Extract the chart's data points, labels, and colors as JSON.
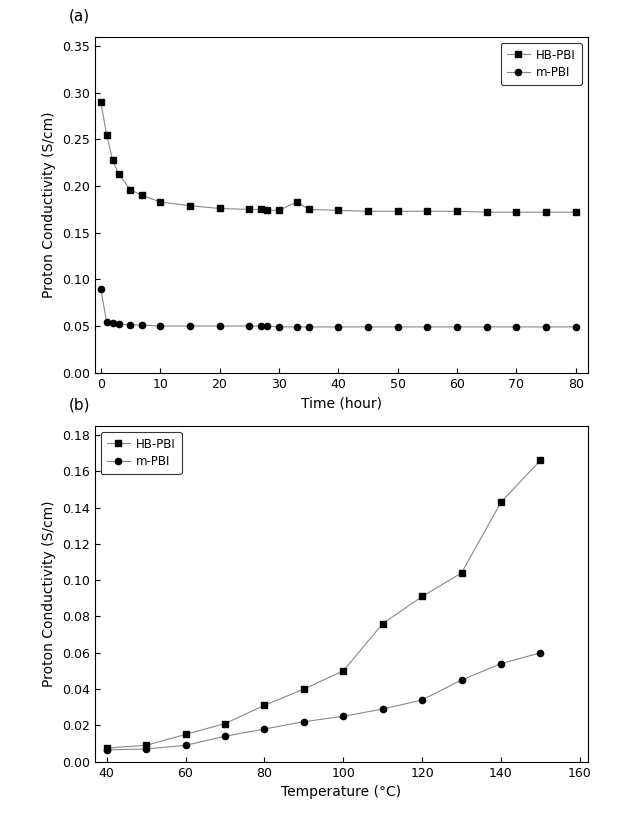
{
  "plot_a": {
    "hb_pbi_x": [
      0,
      1,
      2,
      3,
      5,
      7,
      10,
      15,
      20,
      25,
      27,
      28,
      30,
      33,
      35,
      40,
      45,
      50,
      55,
      60,
      65,
      70,
      75,
      80
    ],
    "hb_pbi_y": [
      0.29,
      0.255,
      0.228,
      0.213,
      0.196,
      0.19,
      0.183,
      0.179,
      0.176,
      0.175,
      0.175,
      0.174,
      0.174,
      0.183,
      0.175,
      0.174,
      0.173,
      0.173,
      0.173,
      0.173,
      0.172,
      0.172,
      0.172,
      0.172
    ],
    "m_pbi_x": [
      0,
      1,
      2,
      3,
      5,
      7,
      10,
      15,
      20,
      25,
      27,
      28,
      30,
      33,
      35,
      40,
      45,
      50,
      55,
      60,
      65,
      70,
      75,
      80
    ],
    "m_pbi_y": [
      0.09,
      0.054,
      0.053,
      0.052,
      0.051,
      0.051,
      0.05,
      0.05,
      0.05,
      0.05,
      0.05,
      0.05,
      0.049,
      0.049,
      0.049,
      0.049,
      0.049,
      0.049,
      0.049,
      0.049,
      0.049,
      0.049,
      0.049,
      0.049
    ],
    "xlabel": "Time (hour)",
    "ylabel": "Proton Conductivity (S/cm)",
    "xlim": [
      -1,
      82
    ],
    "ylim": [
      0.0,
      0.36
    ],
    "xticks": [
      0,
      10,
      20,
      30,
      40,
      50,
      60,
      70,
      80
    ],
    "yticks": [
      0.0,
      0.05,
      0.1,
      0.15,
      0.2,
      0.25,
      0.3,
      0.35
    ],
    "label_a": "(a)"
  },
  "plot_b": {
    "hb_pbi_x": [
      40,
      50,
      60,
      70,
      80,
      90,
      100,
      110,
      120,
      130,
      140,
      150
    ],
    "hb_pbi_y": [
      0.0075,
      0.009,
      0.015,
      0.021,
      0.031,
      0.04,
      0.05,
      0.076,
      0.091,
      0.104,
      0.143,
      0.166
    ],
    "m_pbi_x": [
      40,
      50,
      60,
      70,
      80,
      90,
      100,
      110,
      120,
      130,
      140,
      150
    ],
    "m_pbi_y": [
      0.0065,
      0.007,
      0.009,
      0.014,
      0.018,
      0.022,
      0.025,
      0.029,
      0.034,
      0.045,
      0.054,
      0.06
    ],
    "xlabel": "Temperature (°C)",
    "ylabel": "Proton Conductivity (S/cm)",
    "xlim": [
      37,
      162
    ],
    "ylim": [
      0.0,
      0.185
    ],
    "xticks": [
      40,
      60,
      80,
      100,
      120,
      140,
      160
    ],
    "yticks": [
      0.0,
      0.02,
      0.04,
      0.06,
      0.08,
      0.1,
      0.12,
      0.14,
      0.16,
      0.18
    ],
    "label_b": "(b)"
  },
  "line_color": "#888888",
  "marker_color": "#000000",
  "legend_hb": "HB-PBI",
  "legend_m": "m-PBI",
  "bg_color": "#ffffff",
  "fig_width": 6.32,
  "fig_height": 8.19,
  "dpi": 100
}
